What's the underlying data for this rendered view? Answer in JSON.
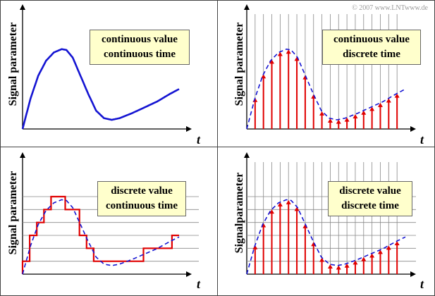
{
  "copyright": "© 2007 www.LNTwww.de",
  "axis_labels": {
    "y": "Signal parameter",
    "y_joined": "Signalparameter",
    "x": "t"
  },
  "panels": [
    {
      "line1": "continuous value",
      "line2": "continuous time"
    },
    {
      "line1": "continuous value",
      "line2": "discrete time"
    },
    {
      "line1": "discrete value",
      "line2": "continuous time"
    },
    {
      "line1": "discrete value",
      "line2": "discrete time"
    }
  ],
  "colors": {
    "continuous": "#1414d2",
    "dashed": "#1414d2",
    "discrete": "#e00000",
    "grid": "#888888"
  }
}
